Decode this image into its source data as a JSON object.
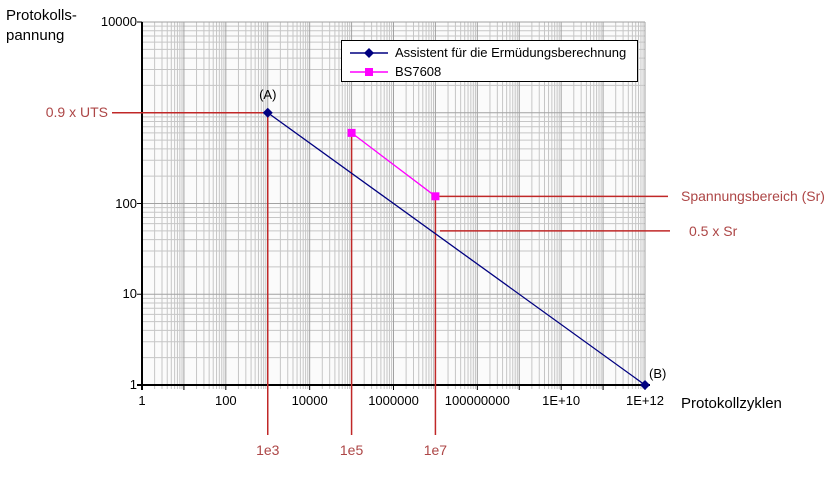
{
  "y_axis": {
    "title_line1": "Protokolls-",
    "title_line2": "pannung",
    "ticks": [
      {
        "label": "10000",
        "exp": 4
      },
      {
        "label": "100",
        "exp": 2
      },
      {
        "label": "10",
        "exp": 1
      },
      {
        "label": "1",
        "exp": 0
      }
    ]
  },
  "x_axis": {
    "title": "Protokollzyklen",
    "ticks": [
      {
        "label": "1",
        "exp": 0
      },
      {
        "label": "100",
        "exp": 2
      },
      {
        "label": "10000",
        "exp": 4
      },
      {
        "label": "1000000",
        "exp": 6
      },
      {
        "label": "100000000",
        "exp": 8
      },
      {
        "label": "1E+10",
        "exp": 10
      },
      {
        "label": "1E+12",
        "exp": 12
      }
    ]
  },
  "legend": {
    "items": [
      {
        "label": "Assistent für die Ermüdungsberechnung",
        "marker": "diamond",
        "color": "#000080"
      },
      {
        "label": "BS7608",
        "marker": "square",
        "color": "#ff00ff"
      }
    ]
  },
  "chart_data": {
    "type": "line",
    "x_scale": "log",
    "y_scale": "log",
    "xlim": [
      1,
      1000000000000.0
    ],
    "ylim": [
      1,
      10000
    ],
    "xlabel": "Protokollzyklen",
    "ylabel": "Protokollspannung",
    "grid": true,
    "legend_position": "top-center",
    "series": [
      {
        "name": "Assistent für die Ermüdungsberechnung",
        "color": "#000080",
        "marker": "diamond",
        "points": [
          [
            1000,
            1000
          ],
          [
            1000000000000.0,
            1
          ]
        ]
      },
      {
        "name": "BS7608",
        "color": "#ff00ff",
        "marker": "square",
        "points": [
          [
            100000,
            600
          ],
          [
            10000000,
            120
          ]
        ]
      }
    ],
    "point_labels": [
      {
        "text": "(A)",
        "x": 1000,
        "y": 1000
      },
      {
        "text": "(B)",
        "x": 1000000000000.0,
        "y": 1
      }
    ],
    "annotations": {
      "uts": {
        "label": "0.9 x UTS",
        "y": 1000
      },
      "sr": {
        "label": "Spannungsbereich (Sr)",
        "y": 120
      },
      "half_sr": {
        "label": "0.5 x Sr",
        "y": 50
      },
      "cycles": [
        {
          "label": "1e3",
          "x": 1000,
          "from_y": 1000
        },
        {
          "label": "1e5",
          "x": 100000,
          "from_y": 600
        },
        {
          "label": "1e7",
          "x": 10000000,
          "from_y": 120
        }
      ]
    }
  },
  "colors": {
    "series1": "#000080",
    "series2": "#ff00ff",
    "annotation_line": "#c02828",
    "annotation_text": "#ad4646",
    "grid_minor": "#c6c6c6",
    "grid_major": "#a2a2a2",
    "axis": "#000000",
    "plot_bg": "#fbfbfb"
  }
}
